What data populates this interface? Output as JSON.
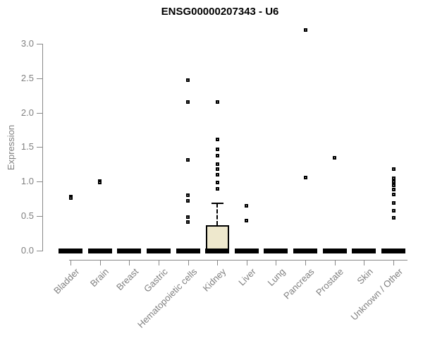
{
  "chart_data": {
    "type": "boxplot",
    "title": "ENSG00000207343 - U6",
    "xlabel": "",
    "ylabel": "Expression",
    "ylim": [
      0.0,
      3.0
    ],
    "yticks": [
      0.0,
      0.5,
      1.0,
      1.5,
      2.0,
      2.5,
      3.0
    ],
    "grid": false,
    "legend": "none",
    "colors": {
      "box_fill": "#EEE8CD",
      "box_border": "#000000",
      "median_color": "#000000",
      "point_color": "#000000",
      "axis_color": "#888888",
      "tick_label_color": "#808080",
      "title_color": "#000000"
    },
    "categories": [
      "Bladder",
      "Brain",
      "Breast",
      "Gastric",
      "Hematopoietic cells",
      "Kidney",
      "Liver",
      "Lung",
      "Pancreas",
      "Prostate",
      "Skin",
      "Unknown / Other"
    ],
    "boxes": [
      {
        "category": "Bladder",
        "median": 0.0,
        "q1": 0.0,
        "q3": 0.0,
        "whisker_low": 0.0,
        "whisker_high": 0.0,
        "points": [
          0.78,
          0.76
        ]
      },
      {
        "category": "Brain",
        "median": 0.0,
        "q1": 0.0,
        "q3": 0.0,
        "whisker_low": 0.0,
        "whisker_high": 0.0,
        "points": [
          1.01,
          0.99
        ]
      },
      {
        "category": "Breast",
        "median": 0.0,
        "q1": 0.0,
        "q3": 0.0,
        "whisker_low": 0.0,
        "whisker_high": 0.0,
        "points": []
      },
      {
        "category": "Gastric",
        "median": 0.0,
        "q1": 0.0,
        "q3": 0.0,
        "whisker_low": 0.0,
        "whisker_high": 0.0,
        "points": []
      },
      {
        "category": "Hematopoietic cells",
        "median": 0.0,
        "q1": 0.0,
        "q3": 0.0,
        "whisker_low": 0.0,
        "whisker_high": 0.0,
        "points": [
          2.47,
          2.15,
          1.32,
          0.8,
          0.72,
          0.49,
          0.41
        ]
      },
      {
        "category": "Kidney",
        "median": 0.0,
        "q1": 0.0,
        "q3": 0.37,
        "whisker_low": 0.0,
        "whisker_high": 0.69,
        "points": [
          2.15,
          1.61,
          1.47,
          1.38,
          1.25,
          1.18,
          1.1,
          0.99,
          0.9
        ]
      },
      {
        "category": "Liver",
        "median": 0.0,
        "q1": 0.0,
        "q3": 0.0,
        "whisker_low": 0.0,
        "whisker_high": 0.0,
        "points": [
          0.65,
          0.43
        ]
      },
      {
        "category": "Lung",
        "median": 0.0,
        "q1": 0.0,
        "q3": 0.0,
        "whisker_low": 0.0,
        "whisker_high": 0.0,
        "points": []
      },
      {
        "category": "Pancreas",
        "median": 0.0,
        "q1": 0.0,
        "q3": 0.0,
        "whisker_low": 0.0,
        "whisker_high": 0.0,
        "points": [
          3.2,
          1.06
        ]
      },
      {
        "category": "Prostate",
        "median": 0.0,
        "q1": 0.0,
        "q3": 0.0,
        "whisker_low": 0.0,
        "whisker_high": 0.0,
        "points": [
          1.35
        ]
      },
      {
        "category": "Skin",
        "median": 0.0,
        "q1": 0.0,
        "q3": 0.0,
        "whisker_low": 0.0,
        "whisker_high": 0.0,
        "points": []
      },
      {
        "category": "Unknown / Other",
        "median": 0.0,
        "q1": 0.0,
        "q3": 0.0,
        "whisker_low": 0.0,
        "whisker_high": 0.0,
        "points": [
          1.18,
          1.05,
          1.0,
          0.95,
          0.89,
          0.81,
          0.69,
          0.58,
          0.48
        ]
      }
    ]
  }
}
